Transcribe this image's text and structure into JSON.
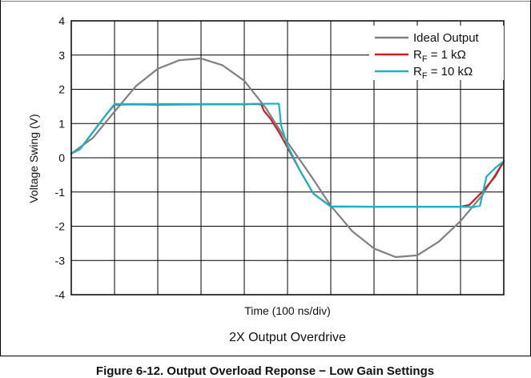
{
  "chart_data": {
    "type": "line",
    "xlabel": "Time (100 ns/div)",
    "ylabel": "Voltage Swing (V)",
    "subtitle": "2X Output Overdrive",
    "caption": "Figure 6-12. Output Overload Reponse − Low Gain Settings",
    "xlim": [
      0,
      10
    ],
    "ylim": [
      -4,
      4
    ],
    "yticks": [
      4,
      3,
      2,
      1,
      0,
      -1,
      -2,
      -3,
      -4
    ],
    "x_divisions": 10,
    "grid": true,
    "legend_position": "top-right",
    "series": [
      {
        "name": "Ideal Output",
        "color": "#808080",
        "x": [
          0,
          0.5,
          1,
          1.5,
          2,
          2.5,
          3,
          3.5,
          4,
          4.5,
          5,
          5.5,
          6,
          6.5,
          7,
          7.5,
          8,
          8.5,
          9,
          9.5,
          10
        ],
        "y": [
          0.12,
          0.58,
          1.35,
          2.1,
          2.6,
          2.85,
          2.9,
          2.7,
          2.25,
          1.45,
          0.45,
          -0.45,
          -1.4,
          -2.15,
          -2.65,
          -2.9,
          -2.85,
          -2.45,
          -1.85,
          -1.1,
          -0.1
        ]
      },
      {
        "name_main": "R",
        "name_sub": "F",
        "name_suffix": " = 1 kΩ",
        "color": "#cc1f1f",
        "x": [
          0,
          0.2,
          0.5,
          0.8,
          1.0,
          1.5,
          2,
          3,
          4,
          4.3,
          4.4,
          4.45,
          4.6,
          4.8,
          5,
          5.3,
          5.6,
          6,
          7,
          8,
          9,
          9.2,
          9.5,
          9.8,
          10
        ],
        "y": [
          0.12,
          0.25,
          0.75,
          1.25,
          1.55,
          1.56,
          1.55,
          1.56,
          1.56,
          1.57,
          1.55,
          1.38,
          1.15,
          0.75,
          0.3,
          -0.4,
          -1.05,
          -1.42,
          -1.43,
          -1.43,
          -1.43,
          -1.38,
          -1.0,
          -0.55,
          -0.1
        ]
      },
      {
        "name_main": "R",
        "name_sub": "F",
        "name_suffix": " = 10 kΩ",
        "color": "#19b3c9",
        "x": [
          0,
          0.2,
          0.5,
          0.8,
          1.0,
          1.5,
          2,
          3,
          4,
          4.6,
          4.8,
          4.82,
          4.85,
          5,
          5.3,
          5.6,
          6,
          7,
          8,
          9,
          9.3,
          9.45,
          9.6,
          9.8,
          10
        ],
        "y": [
          0.12,
          0.25,
          0.75,
          1.25,
          1.57,
          1.57,
          1.57,
          1.57,
          1.57,
          1.58,
          1.58,
          1.35,
          0.95,
          0.35,
          -0.4,
          -1.05,
          -1.43,
          -1.43,
          -1.43,
          -1.43,
          -1.44,
          -1.4,
          -0.55,
          -0.3,
          -0.1
        ]
      }
    ]
  }
}
